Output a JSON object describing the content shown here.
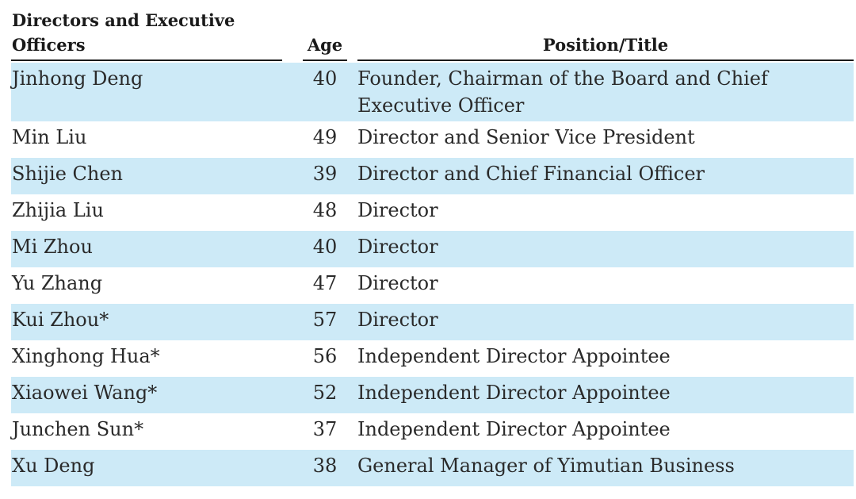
{
  "table": {
    "headers": {
      "name": "Directors and Executive Officers",
      "age": "Age",
      "position": "Position/Title"
    },
    "rows": [
      {
        "name": "Jinhong Deng",
        "age": "40",
        "position": "Founder, Chairman of the Board and Chief Executive Officer"
      },
      {
        "name": "Min Liu",
        "age": "49",
        "position": "Director and Senior Vice President"
      },
      {
        "name": "Shijie Chen",
        "age": "39",
        "position": "Director and Chief Financial Officer"
      },
      {
        "name": "Zhijia Liu",
        "age": "48",
        "position": "Director"
      },
      {
        "name": "Mi Zhou",
        "age": "40",
        "position": "Director"
      },
      {
        "name": "Yu Zhang",
        "age": "47",
        "position": "Director"
      },
      {
        "name": "Kui Zhou*",
        "age": "57",
        "position": "Director"
      },
      {
        "name": "Xinghong Hua*",
        "age": "56",
        "position": "Independent Director Appointee"
      },
      {
        "name": "Xiaowei Wang*",
        "age": "52",
        "position": "Independent Director Appointee"
      },
      {
        "name": "Junchen Sun*",
        "age": "37",
        "position": "Independent Director Appointee"
      },
      {
        "name": "Xu Deng",
        "age": "38",
        "position": "General Manager of Yimutian Business"
      }
    ]
  },
  "colors": {
    "row_shade": "#cdeaf7",
    "header_rule": "#1a1a1a"
  }
}
